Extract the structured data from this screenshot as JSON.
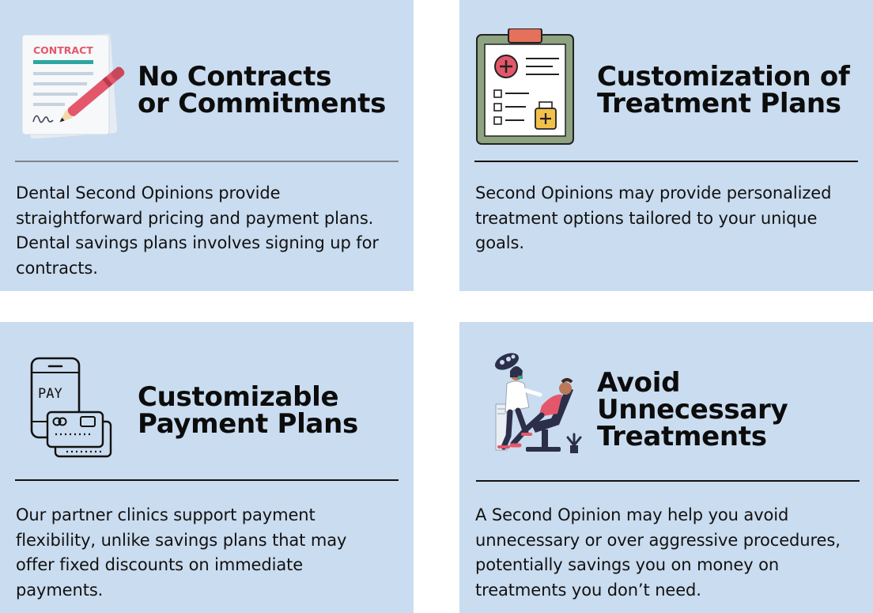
{
  "cards": [
    {
      "title_line1": "No Contracts",
      "title_line2": "or Commitments",
      "icon_text": "CONTRACT",
      "body": "Dental Second Opinions provide straightforward pricing and payment plans. Dental savings plans involves signing up for contracts."
    },
    {
      "title_line1": "Customization of",
      "title_line2": "Treatment Plans",
      "body": "Second Opinions may provide personalized treatment options tailored to your unique goals."
    },
    {
      "title_line1": "Customizable",
      "title_line2": "Payment Plans",
      "icon_text": "PAY",
      "body": "Our partner clinics support payment flexibility, unlike savings plans that may offer fixed discounts on immediate payments."
    },
    {
      "title_line1": "Avoid",
      "title_line2": "Unnecessary",
      "title_line3": "Treatments",
      "body": "A Second Opinion may help you avoid unnecessary or over aggressive procedures, potentially savings you on money on treatments you don’t need."
    }
  ],
  "colors": {
    "card_bg": "#cadcef",
    "accent_red": "#e4576b",
    "accent_teal": "#2fa5a0",
    "clipboard_green": "#8ea37f",
    "dark": "#111111"
  }
}
